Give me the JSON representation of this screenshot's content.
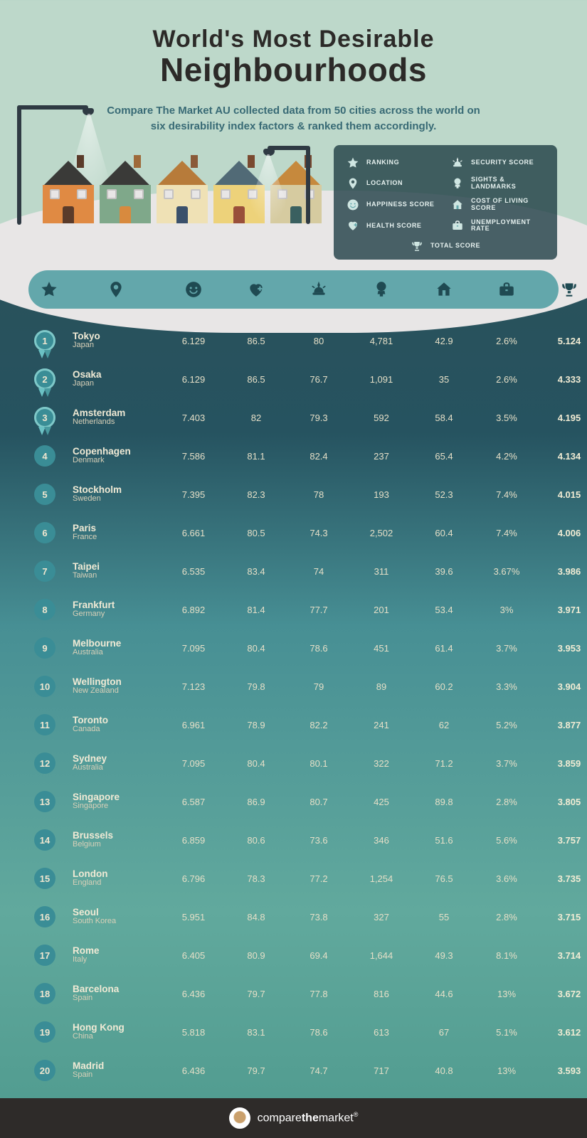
{
  "title": {
    "line1": "World's Most Desirable",
    "line2": "Neighbourhoods",
    "subtitle": "Compare The Market AU collected data from 50 cities across the world on six desirability index factors & ranked them accordingly."
  },
  "palette": {
    "text_dark": "#2c2a28",
    "text_light": "#f0ead5",
    "teal_dark": "#1f4a52",
    "bar": "#63a7ab",
    "badge": "#3a8d96",
    "legend_bg": "rgba(27,58,65,0.78)"
  },
  "legend": {
    "items": [
      {
        "icon": "star",
        "label": "RANKING"
      },
      {
        "icon": "alarm",
        "label": "SECURITY SCORE"
      },
      {
        "icon": "pin",
        "label": "LOCATION"
      },
      {
        "icon": "balloon",
        "label": "SIGHTS & LANDMARKS"
      },
      {
        "icon": "smile",
        "label": "HAPPINESS SCORE"
      },
      {
        "icon": "house",
        "label": "COST OF LIVING SCORE"
      },
      {
        "icon": "heart",
        "label": "HEALTH SCORE"
      },
      {
        "icon": "briefcase",
        "label": "UNEMPLOYMENT RATE"
      }
    ],
    "total": {
      "icon": "trophy",
      "label": "TOTAL SCORE"
    }
  },
  "header_icons": [
    "star",
    "pin",
    "smile",
    "heart",
    "alarm",
    "balloon",
    "house",
    "briefcase",
    "trophy"
  ],
  "houses": [
    {
      "body": "#e08a43",
      "roof": "#3a3a38",
      "door": "#5a3b2a",
      "chim": "#5a3b2a"
    },
    {
      "body": "#7fa88a",
      "roof": "#3a3a38",
      "door": "#d88a3e",
      "chim": "#9e6a3a"
    },
    {
      "body": "#efe1b5",
      "roof": "#b77b3a",
      "door": "#3a506b",
      "chim": "#8a5a38"
    },
    {
      "body": "#edd27a",
      "roof": "#516a76",
      "door": "#994f3a",
      "chim": "#7a4a30"
    },
    {
      "body": "#d6cba0",
      "roof": "#c6893d",
      "door": "#3a6060",
      "chim": "#7a4a30"
    }
  ],
  "rows": [
    {
      "rank": "1",
      "city": "Tokyo",
      "country": "Japan",
      "top": true,
      "v": [
        "6.129",
        "86.5",
        "80",
        "4,781",
        "42.9",
        "2.6%",
        "5.124"
      ]
    },
    {
      "rank": "2",
      "city": "Osaka",
      "country": "Japan",
      "top": true,
      "v": [
        "6.129",
        "86.5",
        "76.7",
        "1,091",
        "35",
        "2.6%",
        "4.333"
      ]
    },
    {
      "rank": "3",
      "city": "Amsterdam",
      "country": "Netherlands",
      "top": true,
      "v": [
        "7.403",
        "82",
        "79.3",
        "592",
        "58.4",
        "3.5%",
        "4.195"
      ]
    },
    {
      "rank": "4",
      "city": "Copenhagen",
      "country": "Denmark",
      "v": [
        "7.586",
        "81.1",
        "82.4",
        "237",
        "65.4",
        "4.2%",
        "4.134"
      ]
    },
    {
      "rank": "5",
      "city": "Stockholm",
      "country": "Sweden",
      "v": [
        "7.395",
        "82.3",
        "78",
        "193",
        "52.3",
        "7.4%",
        "4.015"
      ]
    },
    {
      "rank": "6",
      "city": "Paris",
      "country": "France",
      "v": [
        "6.661",
        "80.5",
        "74.3",
        "2,502",
        "60.4",
        "7.4%",
        "4.006"
      ]
    },
    {
      "rank": "7",
      "city": "Taipei",
      "country": "Taiwan",
      "v": [
        "6.535",
        "83.4",
        "74",
        "311",
        "39.6",
        "3.67%",
        "3.986"
      ]
    },
    {
      "rank": "8",
      "city": "Frankfurt",
      "country": "Germany",
      "v": [
        "6.892",
        "81.4",
        "77.7",
        "201",
        "53.4",
        "3%",
        "3.971"
      ]
    },
    {
      "rank": "9",
      "city": "Melbourne",
      "country": "Australia",
      "v": [
        "7.095",
        "80.4",
        "78.6",
        "451",
        "61.4",
        "3.7%",
        "3.953"
      ]
    },
    {
      "rank": "10",
      "city": "Wellington",
      "country": "New Zealand",
      "v": [
        "7.123",
        "79.8",
        "79",
        "89",
        "60.2",
        "3.3%",
        "3.904"
      ]
    },
    {
      "rank": "11",
      "city": "Toronto",
      "country": "Canada",
      "v": [
        "6.961",
        "78.9",
        "82.2",
        "241",
        "62",
        "5.2%",
        "3.877"
      ]
    },
    {
      "rank": "12",
      "city": "Sydney",
      "country": "Australia",
      "v": [
        "7.095",
        "80.4",
        "80.1",
        "322",
        "71.2",
        "3.7%",
        "3.859"
      ]
    },
    {
      "rank": "13",
      "city": "Singapore",
      "country": "Singapore",
      "v": [
        "6.587",
        "86.9",
        "80.7",
        "425",
        "89.8",
        "2.8%",
        "3.805"
      ]
    },
    {
      "rank": "14",
      "city": "Brussels",
      "country": "Belgium",
      "v": [
        "6.859",
        "80.6",
        "73.6",
        "346",
        "51.6",
        "5.6%",
        "3.757"
      ]
    },
    {
      "rank": "15",
      "city": "London",
      "country": "England",
      "v": [
        "6.796",
        "78.3",
        "77.2",
        "1,254",
        "76.5",
        "3.6%",
        "3.735"
      ]
    },
    {
      "rank": "16",
      "city": "Seoul",
      "country": "South Korea",
      "v": [
        "5.951",
        "84.8",
        "73.8",
        "327",
        "55",
        "2.8%",
        "3.715"
      ]
    },
    {
      "rank": "17",
      "city": "Rome",
      "country": "Italy",
      "v": [
        "6.405",
        "80.9",
        "69.4",
        "1,644",
        "49.3",
        "8.1%",
        "3.714"
      ]
    },
    {
      "rank": "18",
      "city": "Barcelona",
      "country": "Spain",
      "v": [
        "6.436",
        "79.7",
        "77.8",
        "816",
        "44.6",
        "13%",
        "3.672"
      ]
    },
    {
      "rank": "19",
      "city": "Hong Kong",
      "country": "China",
      "v": [
        "5.818",
        "83.1",
        "78.6",
        "613",
        "67",
        "5.1%",
        "3.612"
      ]
    },
    {
      "rank": "20",
      "city": "Madrid",
      "country": "Spain",
      "v": [
        "6.436",
        "79.7",
        "74.7",
        "717",
        "40.8",
        "13%",
        "3.593"
      ]
    }
  ],
  "footer": {
    "brand1": "compare",
    "brand2": "the",
    "brand3": "market",
    "r": "®"
  }
}
